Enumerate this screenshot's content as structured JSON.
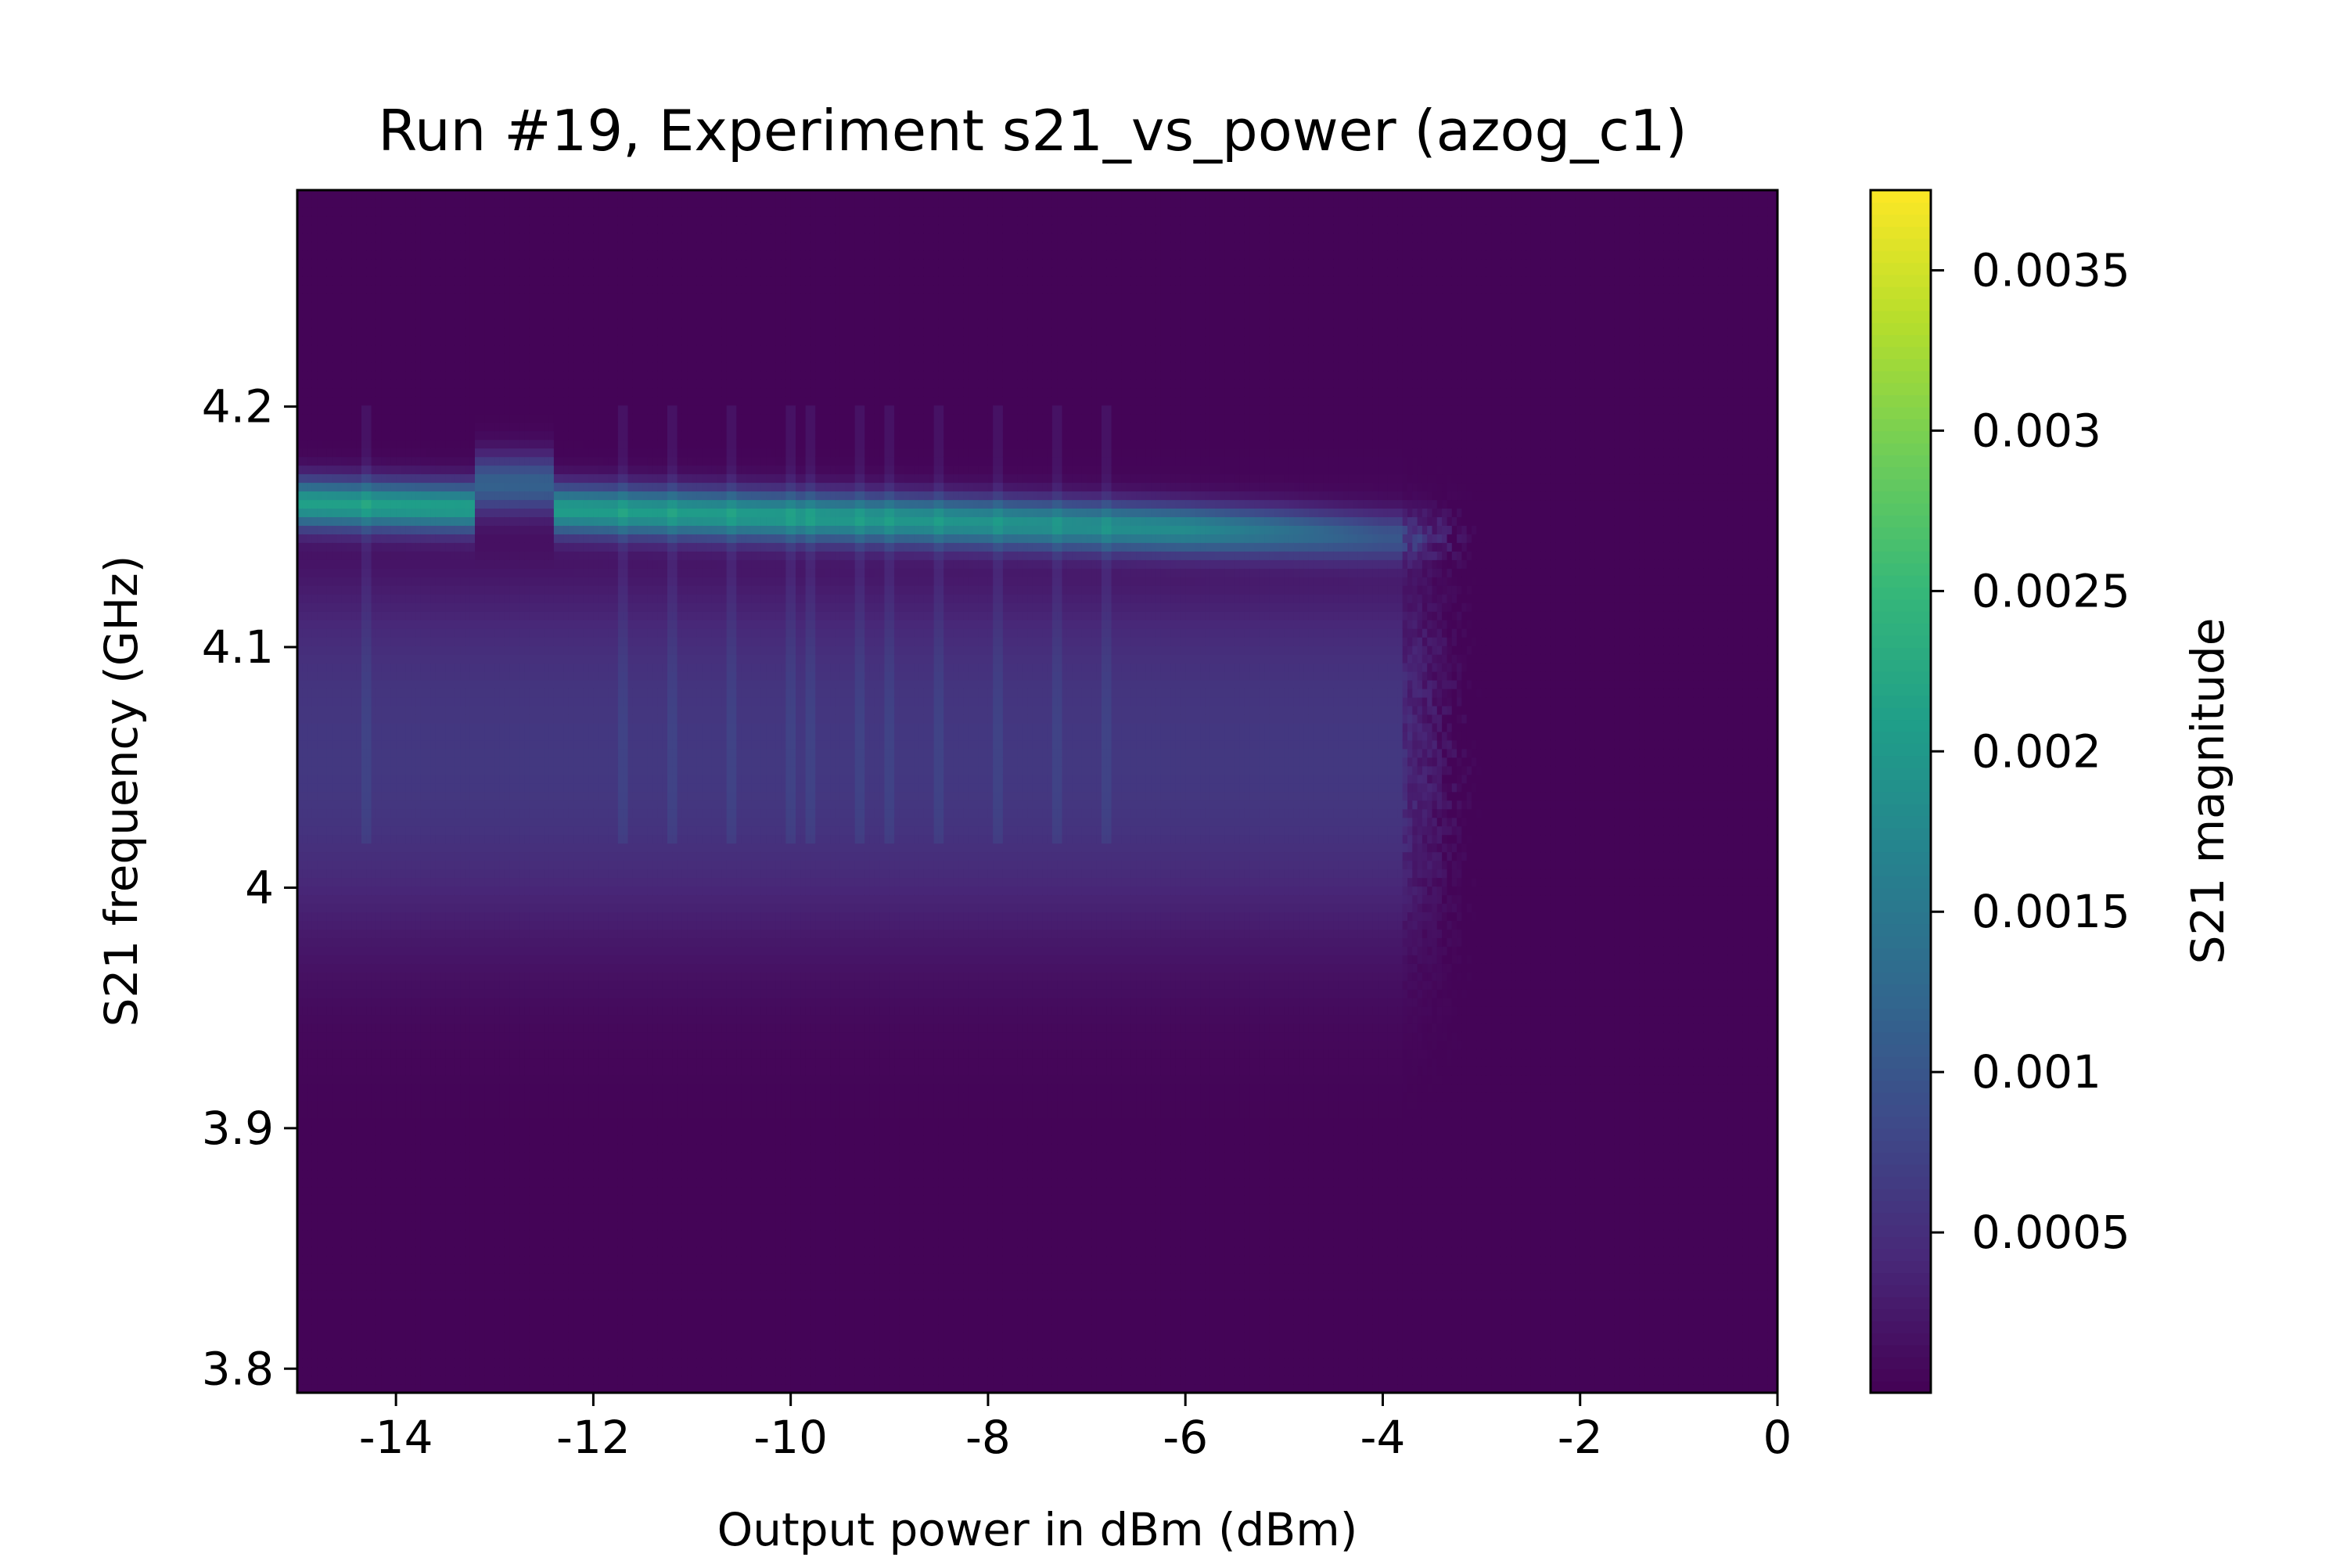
{
  "chart_data": {
    "type": "heatmap",
    "title": "Run #19, Experiment s21_vs_power (azog_c1)",
    "xlabel": "Output power in dBm (dBm)",
    "ylabel": "S21 frequency (GHz)",
    "colorbar_label": "S21 magnitude",
    "colormap": "viridis",
    "xlim": [
      -15,
      0
    ],
    "ylim": [
      3.79,
      4.29
    ],
    "clim": [
      0.0,
      0.00375
    ],
    "xticks": [
      {
        "value": -14,
        "label": "-14"
      },
      {
        "value": -12,
        "label": "-12"
      },
      {
        "value": -10,
        "label": "-10"
      },
      {
        "value": -8,
        "label": "-8"
      },
      {
        "value": -6,
        "label": "-6"
      },
      {
        "value": -4,
        "label": "-4"
      },
      {
        "value": -2,
        "label": "-2"
      },
      {
        "value": 0,
        "label": "0"
      }
    ],
    "yticks": [
      {
        "value": 3.8,
        "label": "3.8"
      },
      {
        "value": 3.9,
        "label": "3.9"
      },
      {
        "value": 4.0,
        "label": "4"
      },
      {
        "value": 4.1,
        "label": "4.1"
      },
      {
        "value": 4.2,
        "label": "4.2"
      }
    ],
    "cticks": [
      {
        "value": 0.0005,
        "label": "0.0005"
      },
      {
        "value": 0.001,
        "label": "0.001"
      },
      {
        "value": 0.0015,
        "label": "0.0015"
      },
      {
        "value": 0.002,
        "label": "0.002"
      },
      {
        "value": 0.0025,
        "label": "0.0025"
      },
      {
        "value": 0.003,
        "label": "0.003"
      },
      {
        "value": 0.0035,
        "label": "0.0035"
      }
    ],
    "background_level": 3e-05,
    "resonances": [
      {
        "feature": "main resonance",
        "center_points": [
          [
            -15,
            4.16
          ],
          [
            -12,
            4.157
          ],
          [
            -8,
            4.152
          ],
          [
            -5,
            4.148
          ],
          [
            -4,
            4.146
          ]
        ],
        "peak_points": [
          [
            -15,
            0.00205
          ],
          [
            -10,
            0.00195
          ],
          [
            -6,
            0.0017
          ],
          [
            -4,
            0.0009
          ]
        ],
        "width_ghz": 0.01
      },
      {
        "feature": "broad lower band",
        "center_ghz": 4.04,
        "x_range": [
          -15,
          -3.2
        ],
        "peak": 0.00055,
        "width_ghz": 0.065
      }
    ],
    "upper_shift_region": {
      "x_range": [
        -13.2,
        -12.4
      ],
      "center_ghz": 4.168
    },
    "transition_x": [
      -3.8,
      -3.0
    ],
    "spikes_x": [
      -14.3,
      -11.7,
      -11.2,
      -10.6,
      -10.0,
      -9.8,
      -9.3,
      -9.0,
      -8.5,
      -7.9,
      -7.3,
      -6.8
    ]
  }
}
